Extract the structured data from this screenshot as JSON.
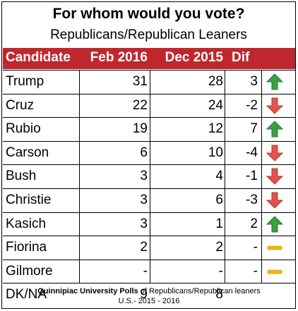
{
  "chart_data": {
    "type": "table",
    "title": "For whom would you vote?",
    "subtitle": "Republicans/Republican Leaners",
    "columns": [
      "Candidate",
      "Feb 2016",
      "Dec 2015",
      "Dif"
    ],
    "rows": [
      {
        "candidate": "Trump",
        "feb": "31",
        "dec": "28",
        "dif": "3",
        "trend": "up"
      },
      {
        "candidate": "Cruz",
        "feb": "22",
        "dec": "24",
        "dif": "-2",
        "trend": "down"
      },
      {
        "candidate": "Rubio",
        "feb": "19",
        "dec": "12",
        "dif": "7",
        "trend": "up"
      },
      {
        "candidate": "Carson",
        "feb": "6",
        "dec": "10",
        "dif": "-4",
        "trend": "down"
      },
      {
        "candidate": "Bush",
        "feb": "3",
        "dec": "4",
        "dif": "-1",
        "trend": "down"
      },
      {
        "candidate": "Christie",
        "feb": "3",
        "dec": "6",
        "dif": "-3",
        "trend": "down"
      },
      {
        "candidate": "Kasich",
        "feb": "3",
        "dec": "1",
        "dif": "2",
        "trend": "up"
      },
      {
        "candidate": "Fiorina",
        "feb": "2",
        "dec": "2",
        "dif": "-",
        "trend": "flat"
      },
      {
        "candidate": "Gilmore",
        "feb": "-",
        "dec": "-",
        "dif": "-",
        "trend": "flat"
      },
      {
        "candidate": "DK/NA",
        "feb": "9",
        "dec": "8",
        "dif": "",
        "trend": ""
      }
    ],
    "footer": {
      "source_bold": "Quinnipiac University Polls",
      "source_rest": " of Republicans/Republican leaners",
      "line2": "U.S.- 2015 - 2016"
    }
  },
  "colors": {
    "header_bg": "#c0272d",
    "up_arrow": "#3aa040",
    "down_arrow": "#e2534c",
    "flat_bar": "#f5b400"
  },
  "icons": {
    "up": "up-arrow-icon",
    "down": "down-arrow-icon",
    "flat": "flat-dash-icon"
  }
}
